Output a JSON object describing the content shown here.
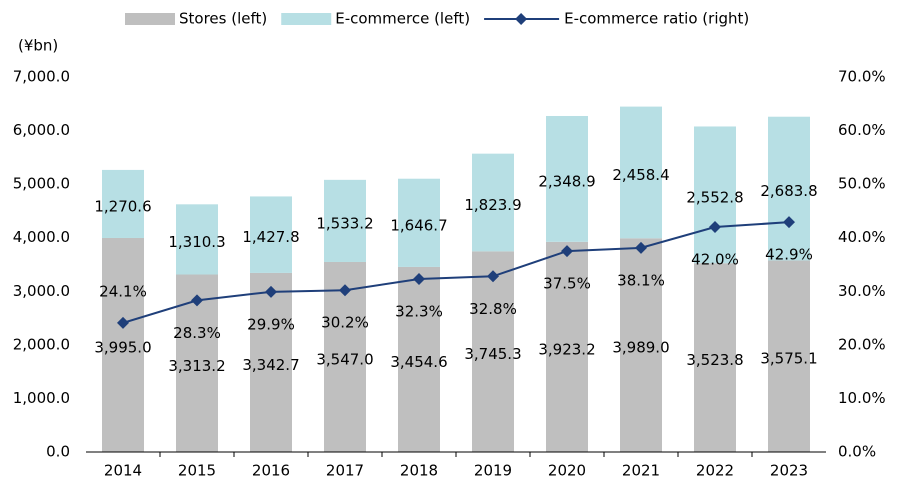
{
  "chart_data": {
    "type": "bar_line",
    "unit_label": "(¥bn)",
    "categories": [
      "2014",
      "2015",
      "2016",
      "2017",
      "2018",
      "2019",
      "2020",
      "2021",
      "2022",
      "2023"
    ],
    "series": [
      {
        "name": "Stores (left)",
        "color": "#bfbfbf",
        "values": [
          3995.0,
          3313.2,
          3342.7,
          3547.0,
          3454.6,
          3745.3,
          3923.2,
          3989.0,
          3523.8,
          3575.1
        ],
        "value_labels": [
          "3,995.0",
          "3,313.2",
          "3,342.7",
          "3,547.0",
          "3,454.6",
          "3,745.3",
          "3,923.2",
          "3,989.0",
          "3,523.8",
          "3,575.1"
        ]
      },
      {
        "name": "E-commerce (left)",
        "color": "#b7dfe4",
        "values": [
          1270.6,
          1310.3,
          1427.8,
          1533.2,
          1646.7,
          1823.9,
          2348.9,
          2458.4,
          2552.8,
          2683.8
        ],
        "value_labels": [
          "1,270.6",
          "1,310.3",
          "1,427.8",
          "1,533.2",
          "1,646.7",
          "1,823.9",
          "2,348.9",
          "2,458.4",
          "2,552.8",
          "2,683.8"
        ]
      },
      {
        "name": "E-commerce ratio (right)",
        "color": "#1f3f7a",
        "axis": "y2",
        "values": [
          24.1,
          28.3,
          29.9,
          30.2,
          32.3,
          32.8,
          37.5,
          38.1,
          42.0,
          42.9
        ],
        "value_labels": [
          "24.1%",
          "28.3%",
          "29.9%",
          "30.2%",
          "32.3%",
          "32.8%",
          "37.5%",
          "38.1%",
          "42.0%",
          "42.9%"
        ]
      }
    ],
    "ylim": [
      0,
      7000
    ],
    "yticks": [
      {
        "value": 0,
        "label": "0.0"
      },
      {
        "value": 1000,
        "label": "1,000.0"
      },
      {
        "value": 2000,
        "label": "2,000.0"
      },
      {
        "value": 3000,
        "label": "3,000.0"
      },
      {
        "value": 4000,
        "label": "4,000.0"
      },
      {
        "value": 5000,
        "label": "5,000.0"
      },
      {
        "value": 6000,
        "label": "6,000.0"
      },
      {
        "value": 7000,
        "label": "7,000.0"
      }
    ],
    "y2lim": [
      0,
      70
    ],
    "y2ticks": [
      {
        "value": 0,
        "label": "0.0%"
      },
      {
        "value": 10,
        "label": "10.0%"
      },
      {
        "value": 20,
        "label": "20.0%"
      },
      {
        "value": 30,
        "label": "30.0%"
      },
      {
        "value": 40,
        "label": "40.0%"
      },
      {
        "value": 50,
        "label": "50.0%"
      },
      {
        "value": 60,
        "label": "60.0%"
      },
      {
        "value": 70,
        "label": "70.0%"
      }
    ],
    "legend": "top"
  }
}
